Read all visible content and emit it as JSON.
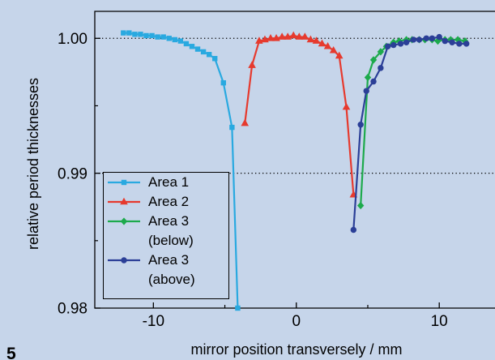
{
  "figure_number": "5",
  "colors": {
    "background": "#c6d5ea",
    "axes": "#000000"
  },
  "chart_data": {
    "type": "line",
    "xlabel": "mirror position transversely / mm",
    "ylabel": "relative period thicknesses",
    "xlim": [
      -14.1,
      13.9
    ],
    "ylim": [
      0.98,
      1.002
    ],
    "xticks": {
      "values": [
        -10,
        0,
        10
      ],
      "labels": [
        "-10",
        "0",
        "10"
      ],
      "minor": [
        -5,
        5
      ]
    },
    "yticks": {
      "values": [
        0.98,
        0.99,
        1.0
      ],
      "labels": [
        "0.98",
        "0.99",
        "1.00"
      ],
      "minor": [
        0.985,
        0.995
      ]
    },
    "horizontal_reference_lines": [
      0.99,
      1.0
    ],
    "reference_line_style": "dotted",
    "legend": {
      "placement": "lower-left"
    },
    "series": [
      {
        "name": "Area 1",
        "color": "#29a9e0",
        "marker": "square",
        "x": [
          -12.1,
          -11.7,
          -11.3,
          -10.9,
          -10.5,
          -10.1,
          -9.7,
          -9.3,
          -8.9,
          -8.5,
          -8.1,
          -7.7,
          -7.3,
          -6.9,
          -6.5,
          -6.1,
          -5.7,
          -5.1,
          -4.5,
          -4.1
        ],
        "y": [
          1.0004,
          1.0004,
          1.0003,
          1.0003,
          1.0002,
          1.0002,
          1.0001,
          1.0001,
          1.0,
          0.9999,
          0.9998,
          0.9996,
          0.9994,
          0.9992,
          0.999,
          0.9988,
          0.9985,
          0.9967,
          0.9934,
          0.98
        ]
      },
      {
        "name": "Area 2",
        "color": "#e63a2e",
        "marker": "triangle",
        "x": [
          -3.6,
          -3.1,
          -2.6,
          -2.2,
          -1.8,
          -1.4,
          -1.0,
          -0.6,
          -0.2,
          0.2,
          0.6,
          1.0,
          1.4,
          1.8,
          2.2,
          2.6,
          3.0,
          3.5,
          4.0
        ],
        "y": [
          0.9937,
          0.998,
          0.9998,
          0.9999,
          1.0,
          1.0,
          1.0001,
          1.0001,
          1.0002,
          1.0001,
          1.0001,
          0.9999,
          0.9998,
          0.9996,
          0.9994,
          0.9991,
          0.9987,
          0.9949,
          0.9884
        ]
      },
      {
        "name": "Area 3 (below)",
        "color": "#1daa4c",
        "marker": "diamond",
        "x": [
          4.5,
          5.0,
          5.4,
          5.9,
          6.3,
          6.8,
          7.2,
          7.7,
          8.1,
          8.6,
          9.0,
          9.5,
          9.9,
          10.4,
          10.8,
          11.3,
          11.8
        ],
        "y": [
          0.9876,
          0.9971,
          0.9984,
          0.999,
          0.9994,
          0.9997,
          0.9998,
          0.9999,
          0.9999,
          0.9999,
          0.9999,
          0.9999,
          0.9998,
          0.9999,
          0.9999,
          0.9999,
          0.9998
        ]
      },
      {
        "name": "Area 3 (above)",
        "color": "#2b3f97",
        "marker": "circle",
        "x": [
          4.0,
          4.5,
          4.9,
          5.4,
          5.9,
          6.4,
          6.8,
          7.3,
          7.7,
          8.2,
          8.6,
          9.1,
          9.5,
          10.0,
          10.4,
          10.9,
          11.4,
          11.9
        ],
        "y": [
          0.9858,
          0.9936,
          0.9961,
          0.9968,
          0.9978,
          0.9994,
          0.9995,
          0.9996,
          0.9997,
          0.9999,
          0.9999,
          1.0,
          1.0,
          1.0001,
          0.9998,
          0.9997,
          0.9996,
          0.9996
        ]
      }
    ]
  }
}
